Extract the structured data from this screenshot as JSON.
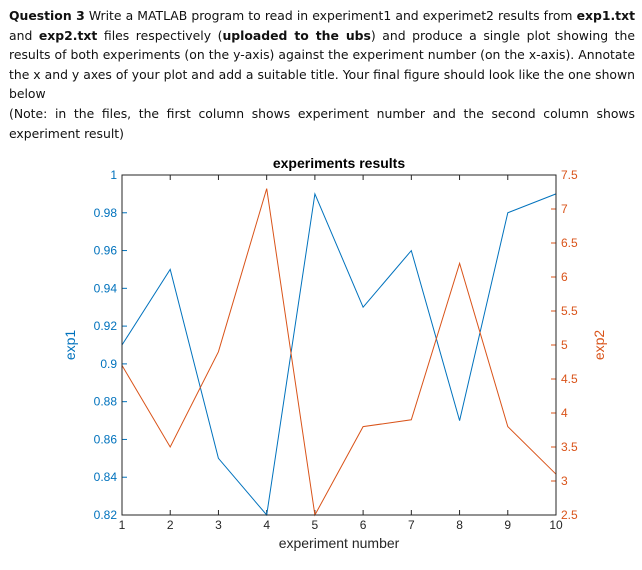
{
  "question": {
    "heading": "Question 3",
    "part1": " Write a MATLAB program to read in experiment1 and experimet2 results from ",
    "file1": "exp1.txt",
    "part2": " and ",
    "file2": "exp2.txt",
    "part3": "  files respectively (",
    "uploaded": "uploaded to the ubs",
    "part4": ") and produce a single plot showing the results of both experiments (on the y-axis) against the experiment number (on the x-axis). Annotate the x and y axes of your plot and add a suitable title. Your final figure should look like the one shown below",
    "note": "(Note: in the files, the first column shows experiment number and the second column shows experiment result)"
  },
  "colors": {
    "exp1": "#0072BD",
    "exp2": "#D95319",
    "axis": "#262626"
  },
  "chart_data": {
    "type": "line",
    "title": "experiments results",
    "xlabel": "experiment number",
    "ylabel_left": "exp1",
    "ylabel_right": "exp2",
    "x": [
      1,
      2,
      3,
      4,
      5,
      6,
      7,
      8,
      9,
      10
    ],
    "xlim": [
      1,
      10
    ],
    "xticks": [
      1,
      2,
      3,
      4,
      5,
      6,
      7,
      8,
      9,
      10
    ],
    "ylim_left": [
      0.82,
      1
    ],
    "yticks_left": [
      0.82,
      0.84,
      0.86,
      0.88,
      0.9,
      0.92,
      0.94,
      0.96,
      0.98,
      1
    ],
    "ytick_labels_left": [
      "0.82",
      "0.84",
      "0.86",
      "0.88",
      "0.9",
      "0.92",
      "0.94",
      "0.96",
      "0.98",
      "1"
    ],
    "ylim_right": [
      2.5,
      7.5
    ],
    "yticks_right": [
      2.5,
      3,
      3.5,
      4,
      4.5,
      5,
      5.5,
      6,
      6.5,
      7,
      7.5
    ],
    "ytick_labels_right": [
      "2.5",
      "3",
      "3.5",
      "4",
      "4.5",
      "5",
      "5.5",
      "6",
      "6.5",
      "7",
      "7.5"
    ],
    "grid": false,
    "series": [
      {
        "values": [
          0.91,
          0.95,
          0.85,
          0.82,
          0.99,
          0.93,
          0.96,
          0.87,
          0.98,
          0.99
        ],
        "axis": "left"
      },
      {
        "values": [
          4.7,
          3.5,
          4.9,
          7.3,
          2.5,
          3.8,
          3.9,
          6.2,
          3.8,
          3.1
        ],
        "axis": "right"
      }
    ]
  }
}
